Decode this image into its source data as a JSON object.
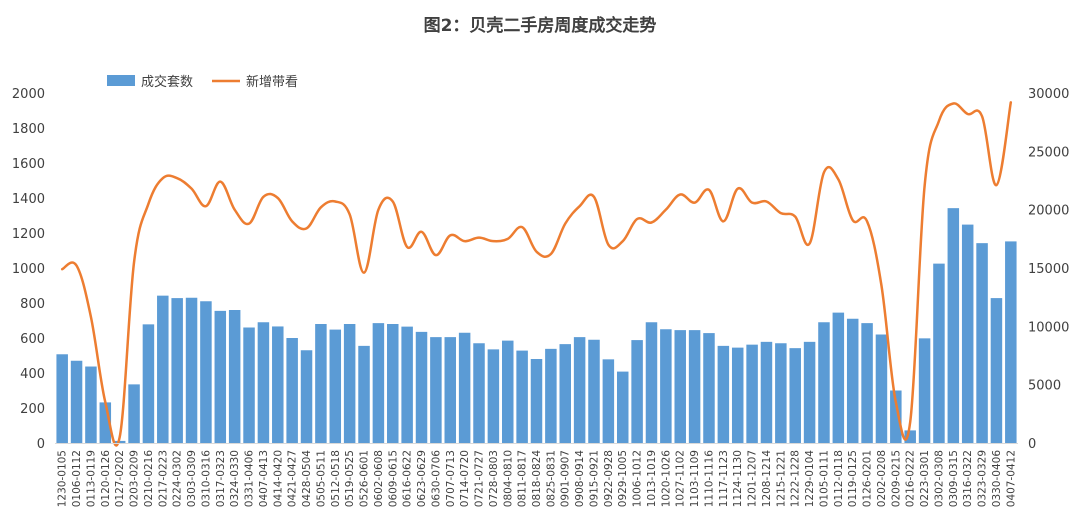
{
  "chart_data": {
    "type": "bar+line",
    "title": "图2：贝壳二手房周度成交走势",
    "legend": [
      {
        "name": "成交套数",
        "type": "bar",
        "color": "#5b9bd5"
      },
      {
        "name": "新增带看",
        "type": "line",
        "color": "#ed7d31"
      }
    ],
    "legend_position": "top-left",
    "y_left": {
      "min": 0,
      "max": 2000,
      "ticks": [
        0,
        200,
        400,
        600,
        800,
        1000,
        1200,
        1400,
        1600,
        1800,
        2000
      ]
    },
    "y_right": {
      "min": 0,
      "max": 30000,
      "ticks": [
        0,
        5000,
        10000,
        15000,
        20000,
        25000,
        30000
      ]
    },
    "categories": [
      "1230-0105",
      "0106-0112",
      "0113-0119",
      "0120-0126",
      "0127-0202",
      "0203-0209",
      "0210-0216",
      "0217-0223",
      "0224-0302",
      "0303-0309",
      "0310-0316",
      "0317-0323",
      "0324-0330",
      "0331-0406",
      "0407-0413",
      "0414-0420",
      "0421-0427",
      "0428-0504",
      "0505-0511",
      "0512-0518",
      "0519-0525",
      "0526-0601",
      "0602-0608",
      "0609-0615",
      "0616-0622",
      "0623-0629",
      "0630-0706",
      "0707-0713",
      "0714-0720",
      "0721-0727",
      "0728-0803",
      "0804-0810",
      "0811-0817",
      "0818-0824",
      "0825-0831",
      "0901-0907",
      "0908-0914",
      "0915-0921",
      "0922-0928",
      "0929-1005",
      "1006-1012",
      "1013-1019",
      "1020-1026",
      "1027-1102",
      "1103-1109",
      "1110-1116",
      "1117-1123",
      "1124-1130",
      "1201-1207",
      "1208-1214",
      "1215-1221",
      "1222-1228",
      "1229-0104",
      "0105-0111",
      "0112-0118",
      "0119-0125",
      "0126-0201",
      "0202-0208",
      "0209-0215",
      "0216-0222",
      "0223-0301",
      "0302-0308",
      "0309-0315",
      "0316-0322",
      "0323-0329",
      "0330-0406",
      "0407-0412"
    ],
    "series": [
      {
        "name": "成交套数",
        "axis": "left",
        "values": [
          507,
          470,
          437,
          232,
          12,
          335,
          678,
          842,
          828,
          830,
          810,
          755,
          760,
          660,
          690,
          666,
          600,
          530,
          680,
          648,
          680,
          555,
          685,
          680,
          665,
          635,
          605,
          605,
          630,
          570,
          535,
          585,
          528,
          480,
          538,
          565,
          605,
          590,
          478,
          408,
          588,
          690,
          650,
          645,
          645,
          628,
          555,
          545,
          562,
          578,
          570,
          542,
          578,
          690,
          745,
          710,
          685,
          620,
          300,
          72,
          598,
          1025,
          1342,
          1248,
          1142,
          828,
          1152
        ]
      },
      {
        "name": "新增带看",
        "axis": "right",
        "values": [
          14900,
          15200,
          10800,
          3500,
          500,
          15500,
          20500,
          22700,
          22700,
          21800,
          20300,
          22400,
          20000,
          18800,
          21100,
          21000,
          19000,
          18400,
          20200,
          20700,
          19600,
          14600,
          20000,
          20700,
          16800,
          18100,
          16100,
          17800,
          17300,
          17600,
          17300,
          17500,
          18500,
          16400,
          16200,
          18800,
          20300,
          21100,
          17000,
          17300,
          19200,
          18900,
          20000,
          21300,
          20600,
          21700,
          19000,
          21800,
          20600,
          20700,
          19700,
          19400,
          17100,
          23200,
          22600,
          19100,
          19000,
          13500,
          3500,
          1800,
          22000,
          27600,
          29100,
          28200,
          28000,
          22100,
          29200
        ]
      }
    ]
  }
}
